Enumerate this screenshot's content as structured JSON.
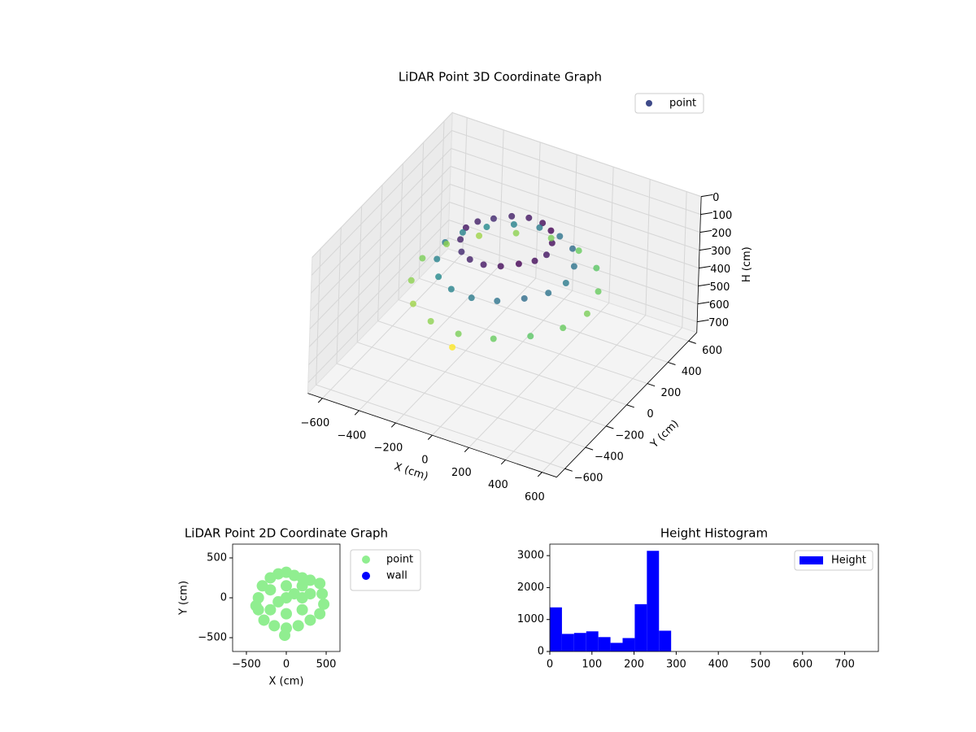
{
  "chart_data": [
    {
      "type": "scatter3d",
      "title": "LiDAR Point 3D Coordinate Graph",
      "xlabel": "X (cm)",
      "ylabel": "Y (cm)",
      "zlabel": "H (cm)",
      "legend": "upper right",
      "colormap": "viridis",
      "series": [
        {
          "name": "point",
          "color": "#3e4a89",
          "x": [
            220,
            203,
            156,
            84,
            0,
            -84,
            -156,
            -203,
            -220,
            -203,
            -156,
            -84,
            0,
            84,
            156,
            203,
            330,
            304,
            234,
            125,
            0,
            -125,
            -234,
            -304,
            -330,
            -304,
            -234,
            -125,
            0,
            125,
            234,
            304,
            450,
            414,
            320,
            171,
            0,
            -171,
            -320,
            -414,
            -450,
            -414,
            -320,
            -171,
            0,
            171,
            320,
            414,
            -20
          ],
          "y": [
            0,
            84,
            156,
            203,
            220,
            203,
            156,
            84,
            0,
            -84,
            -156,
            -203,
            -220,
            -203,
            -156,
            -84,
            0,
            125,
            234,
            304,
            330,
            304,
            234,
            125,
            0,
            -125,
            -234,
            -304,
            -330,
            -304,
            -234,
            -125,
            0,
            171,
            320,
            414,
            450,
            414,
            320,
            171,
            0,
            -171,
            -320,
            -414,
            -450,
            -414,
            -320,
            -171,
            -470
          ],
          "z": [
            80,
            70,
            60,
            70,
            80,
            90,
            100,
            90,
            80,
            90,
            100,
            90,
            80,
            70,
            60,
            70,
            200,
            190,
            180,
            190,
            200,
            210,
            220,
            210,
            200,
            210,
            220,
            210,
            200,
            190,
            180,
            190,
            330,
            320,
            310,
            320,
            330,
            340,
            350,
            340,
            330,
            340,
            350,
            340,
            330,
            320,
            310,
            320,
            400
          ]
        }
      ],
      "xlim": [
        -680,
        680
      ],
      "ylim": [
        -680,
        680
      ],
      "zlim": [
        0,
        760
      ],
      "zinverted": true,
      "xticks": [
        {
          "value": -600,
          "label": "−600"
        },
        {
          "value": -400,
          "label": "−400"
        },
        {
          "value": -200,
          "label": "−200"
        },
        0,
        200,
        400,
        600
      ],
      "yticks": [
        {
          "value": -600,
          "label": "−600"
        },
        {
          "value": -400,
          "label": "−400"
        },
        {
          "value": -200,
          "label": "−200"
        },
        0,
        200,
        400,
        600
      ],
      "zticks": [
        0,
        100,
        200,
        300,
        400,
        500,
        600,
        700
      ]
    },
    {
      "type": "scatter",
      "title": "LiDAR Point 2D Coordinate Graph",
      "xlabel": "X (cm)",
      "ylabel": "Y (cm)",
      "legend": "outside right",
      "series": [
        {
          "name": "point",
          "color": "#90ee90",
          "x": [
            -350,
            -350,
            -300,
            -200,
            -100,
            0,
            100,
            200,
            300,
            420,
            450,
            470,
            420,
            300,
            150,
            0,
            -150,
            -280,
            -380,
            -200,
            -200,
            0,
            0,
            0,
            200,
            200,
            200,
            -100,
            100,
            300,
            -20
          ],
          "y": [
            -150,
            0,
            150,
            250,
            300,
            320,
            280,
            250,
            220,
            180,
            50,
            -80,
            -200,
            -280,
            -350,
            -380,
            -350,
            -280,
            -100,
            -150,
            100,
            0,
            150,
            -200,
            0,
            -150,
            150,
            -50,
            50,
            50,
            -470
          ]
        },
        {
          "name": "wall",
          "color": "#0000ff",
          "x": [],
          "y": []
        }
      ],
      "xlim": [
        -673,
        673
      ],
      "ylim": [
        -673,
        673
      ],
      "xticks": [
        {
          "value": -500,
          "label": "−500"
        },
        0,
        500
      ],
      "yticks": [
        {
          "value": -500,
          "label": "−500"
        },
        0,
        500
      ]
    },
    {
      "type": "histogram",
      "title": "Height Histogram",
      "name": "Height",
      "color": "#0000ff",
      "legend": "upper right",
      "bins": [
        0,
        28.8,
        57.6,
        86.4,
        115.2,
        144,
        172.8,
        201.6,
        230.4,
        259.2,
        288,
        316.8,
        345.6,
        374.4,
        403.2,
        432,
        460.8,
        489.6,
        518.4,
        547.2,
        576,
        604.8,
        633.6,
        662.4,
        691.2,
        720
      ],
      "values": [
        1380,
        550,
        580,
        630,
        450,
        270,
        420,
        1480,
        3150,
        650,
        0,
        0,
        0,
        0,
        0,
        0,
        0,
        0,
        0,
        0,
        0,
        0,
        0,
        0,
        0
      ],
      "xlim": [
        0,
        780
      ],
      "ylim": [
        0,
        3360
      ],
      "xticks": [
        0,
        100,
        200,
        300,
        400,
        500,
        600,
        700
      ],
      "yticks": [
        0,
        1000,
        2000,
        3000
      ]
    }
  ]
}
